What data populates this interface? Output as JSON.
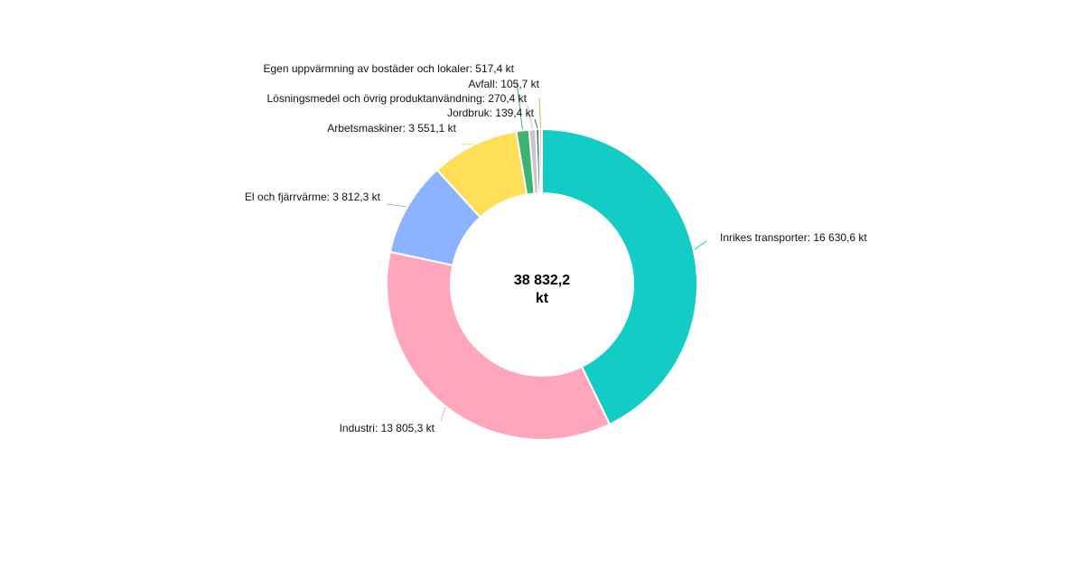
{
  "chart_data": {
    "type": "pie",
    "variant": "donut",
    "unit": "kt",
    "center_label": {
      "line1": "38 832,2",
      "line2": "kt"
    },
    "slices": [
      {
        "name": "Inrikes transporter",
        "value": 16630.6,
        "label": "Inrikes transporter: 16 630,6 kt",
        "color": "#12CCC5"
      },
      {
        "name": "Industri",
        "value": 13805.3,
        "label": "Industri: 13 805,3 kt",
        "color": "#FFA6BD"
      },
      {
        "name": "El och fjärrvärme",
        "value": 3812.3,
        "label": "El och fjärrvärme: 3 812,3 kt",
        "color": "#8CB3FF"
      },
      {
        "name": "Arbetsmaskiner",
        "value": 3551.1,
        "label": "Arbetsmaskiner: 3 551,1 kt",
        "color": "#FFDF57"
      },
      {
        "name": "Egen uppvärmning av bostäder och lokaler",
        "value": 517.4,
        "label": "Egen uppvärmning av bostäder och lokaler: 517,4 kt",
        "color": "#3CB371"
      },
      {
        "name": "Lösningsmedel och övrig produktanvändning",
        "value": 270.4,
        "label": "Lösningsmedel och övrig produktanvändning: 270,4 kt",
        "color": "#C7C7C7"
      },
      {
        "name": "Jordbruk",
        "value": 139.4,
        "label": "Jordbruk: 139,4 kt",
        "color": "#376C8F"
      },
      {
        "name": "Avfall",
        "value": 105.7,
        "label": "Avfall: 105,7 kt",
        "color": "#F2A65A"
      }
    ]
  }
}
